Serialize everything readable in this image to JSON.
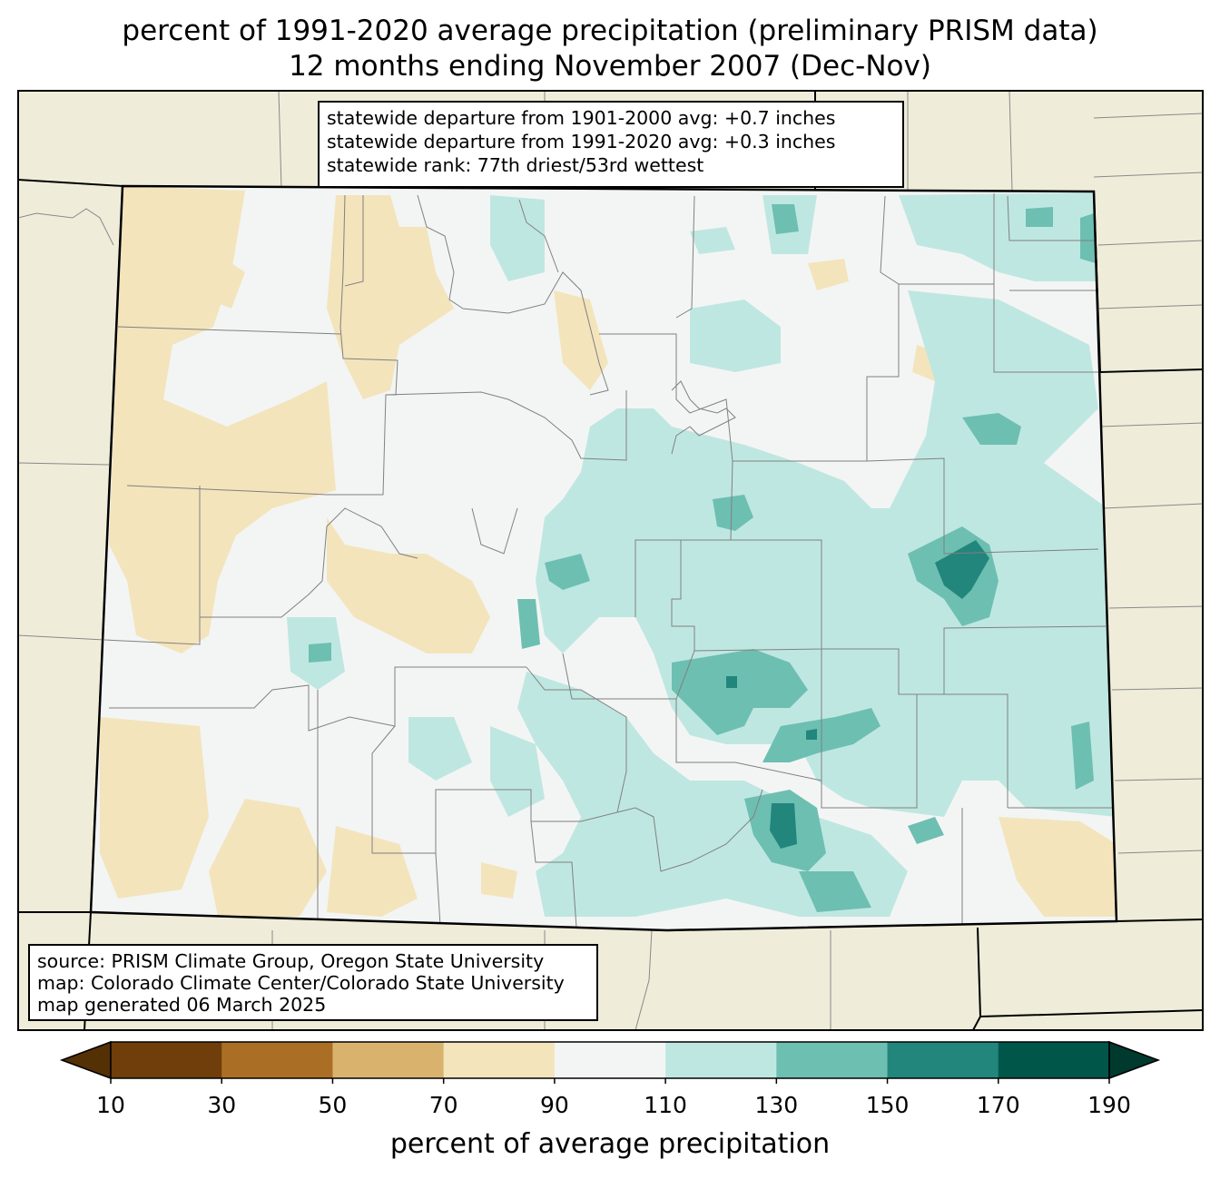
{
  "title": {
    "line1": "percent of 1991-2020 average precipitation (preliminary PRISM data)",
    "line2": "12 months ending November 2007 (Dec-Nov)"
  },
  "stats_box": {
    "line1": "statewide departure from 1901-2000 avg: +0.7 inches",
    "line2": "statewide departure from 1991-2020 avg: +0.3 inches",
    "line3": "statewide rank: 77th driest/53rd wettest"
  },
  "source_box": {
    "line1": "source: PRISM Climate Group, Oregon State University",
    "line2": "map: Colorado Climate Center/Colorado State University",
    "line3": "map generated 06 March 2025"
  },
  "colorbar": {
    "label": "percent of average precipitation",
    "ticks": [
      "10",
      "30",
      "50",
      "70",
      "90",
      "110",
      "130",
      "150",
      "170",
      "190"
    ],
    "colors": [
      "#543005",
      "#6f3e0a",
      "#aa6f24",
      "#d9b36e",
      "#f3e4bc",
      "#f3f5f4",
      "#bfe7e1",
      "#6dbfb1",
      "#22867c",
      "#01564a",
      "#003a2f"
    ]
  },
  "map_colors": {
    "outside": "#efedda",
    "near_normal": "#f3f5f4",
    "dry_70_90": "#f3e4bc",
    "wet_110_130": "#bfe7e1",
    "wet_130_150": "#6dbfb1",
    "wet_150_170": "#22867c"
  }
}
